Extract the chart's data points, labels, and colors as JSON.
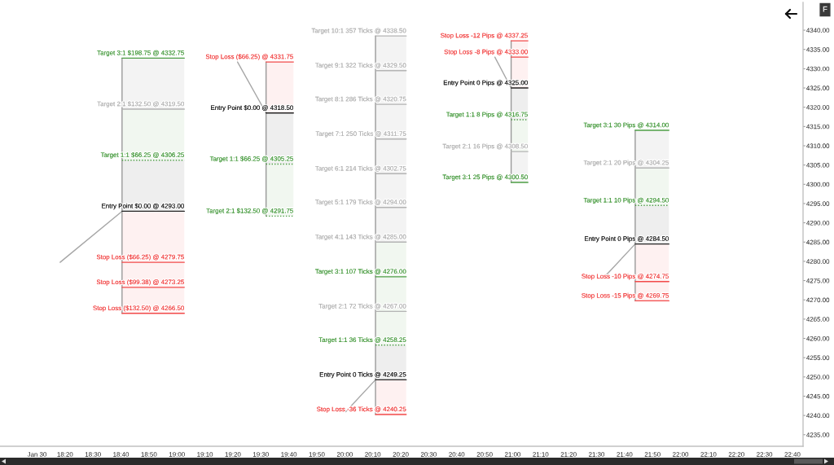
{
  "chart_data": {
    "type": "line",
    "line_style": "solid",
    "xlim": [
      17.946,
      22.73
    ],
    "ylim": [
      4232,
      4347.2
    ],
    "xticks": [
      {
        "value": 18.1667,
        "label": "Jan 30"
      },
      {
        "value": 18.3333,
        "label": "18:20"
      },
      {
        "value": 18.5,
        "label": "18:30"
      },
      {
        "value": 18.6667,
        "label": "18:40"
      },
      {
        "value": 18.8333,
        "label": "18:50"
      },
      {
        "value": 19.0,
        "label": "19:00"
      },
      {
        "value": 19.1667,
        "label": "19:10"
      },
      {
        "value": 19.3333,
        "label": "19:20"
      },
      {
        "value": 19.5,
        "label": "19:30"
      },
      {
        "value": 19.6667,
        "label": "19:40"
      },
      {
        "value": 19.8333,
        "label": "19:50"
      },
      {
        "value": 20.0,
        "label": "20:00"
      },
      {
        "value": 20.1667,
        "label": "20:10"
      },
      {
        "value": 20.3333,
        "label": "20:20"
      },
      {
        "value": 20.5,
        "label": "20:30"
      },
      {
        "value": 20.6667,
        "label": "20:40"
      },
      {
        "value": 20.8333,
        "label": "20:50"
      },
      {
        "value": 21.0,
        "label": "21:00"
      },
      {
        "value": 21.1667,
        "label": "21:10"
      },
      {
        "value": 21.3333,
        "label": "21:20"
      },
      {
        "value": 21.5,
        "label": "21:30"
      },
      {
        "value": 21.6667,
        "label": "21:40"
      },
      {
        "value": 21.8333,
        "label": "21:50"
      },
      {
        "value": 22.0,
        "label": "22:00"
      },
      {
        "value": 22.1667,
        "label": "22:10"
      },
      {
        "value": 22.3333,
        "label": "22:20"
      },
      {
        "value": 22.5,
        "label": "22:30"
      },
      {
        "value": 22.6667,
        "label": "22:40"
      }
    ],
    "yticks": [
      {
        "value": 4235,
        "label": "4235.00"
      },
      {
        "value": 4240,
        "label": "4240.00"
      },
      {
        "value": 4245,
        "label": "4245.00"
      },
      {
        "value": 4250,
        "label": "4250.00"
      },
      {
        "value": 4255,
        "label": "4255.00"
      },
      {
        "value": 4260,
        "label": "4260.00"
      },
      {
        "value": 4265,
        "label": "4265.00"
      },
      {
        "value": 4270,
        "label": "4270.00"
      },
      {
        "value": 4275,
        "label": "4275.00"
      },
      {
        "value": 4280,
        "label": "4280.00"
      },
      {
        "value": 4285,
        "label": "4285.00"
      },
      {
        "value": 4290,
        "label": "4290.00"
      },
      {
        "value": 4295,
        "label": "4295.00"
      },
      {
        "value": 4300,
        "label": "4300.00"
      },
      {
        "value": 4305,
        "label": "4305.00"
      },
      {
        "value": 4310,
        "label": "4310.00"
      },
      {
        "value": 4315,
        "label": "4315.00"
      },
      {
        "value": 4320,
        "label": "4320.00"
      },
      {
        "value": 4325,
        "label": "4325.00"
      },
      {
        "value": 4330,
        "label": "4330.00"
      },
      {
        "value": 4335,
        "label": "4335.00"
      },
      {
        "value": 4340,
        "label": "4340.00"
      }
    ],
    "annotations": [
      "F",
      {
        "text": "Target 3:1 $198.75 @ 4332.75",
        "x": 19.044,
        "y": 4332.75
      },
      {
        "text": "Target 2:1 $132.50 @ 4319.50",
        "x": 19.044,
        "y": 4319.5
      },
      {
        "text": "Target 1:1 $66.25 @ 4306.25",
        "x": 19.044,
        "y": 4306.25
      },
      {
        "text": "Entry Point $0.00 @ 4293.00",
        "x": 19.044,
        "y": 4293.0
      },
      {
        "text": "Stop Loss ($66.25) @ 4279.75",
        "x": 19.044,
        "y": 4279.75
      },
      {
        "text": "Stop Loss ($99.38) @ 4273.25",
        "x": 19.044,
        "y": 4273.25
      },
      {
        "text": "Stop Loss ($132.50) @ 4266.50",
        "x": 19.044,
        "y": 4266.5
      },
      {
        "text": "Stop Loss ($66.25) @ 4331.75",
        "x": 19.694,
        "y": 4331.75
      },
      {
        "text": "Entry Point $0.00 @ 4318.50",
        "x": 19.694,
        "y": 4318.5
      },
      {
        "text": "Target 1:1 $66.25 @ 4305.25",
        "x": 19.694,
        "y": 4305.25
      },
      {
        "text": "Target 2:1 $132.50 @ 4291.75",
        "x": 19.694,
        "y": 4291.75
      },
      {
        "text": "Target 10:1 357 Ticks @ 4338.50",
        "x": 20.366,
        "y": 4338.5
      },
      {
        "text": "Target 9:1 322 Ticks @ 4329.50",
        "x": 20.366,
        "y": 4329.5
      },
      {
        "text": "Target 8:1 286 Ticks @ 4320.75",
        "x": 20.366,
        "y": 4320.75
      },
      {
        "text": "Target 7:1 250 Ticks @ 4311.75",
        "x": 20.366,
        "y": 4311.75
      },
      {
        "text": "Target 6:1 214 Ticks @ 4302.75",
        "x": 20.366,
        "y": 4302.75
      },
      {
        "text": "Target 5:1 179 Ticks @ 4294.00",
        "x": 20.366,
        "y": 4294.0
      },
      {
        "text": "Target 4:1 143 Ticks @ 4285.00",
        "x": 20.366,
        "y": 4285.0
      },
      {
        "text": "Target 3:1 107 Ticks @ 4276.00",
        "x": 20.366,
        "y": 4276.0
      },
      {
        "text": "Target 2:1 72 Ticks @ 4267.00",
        "x": 20.366,
        "y": 4267.0
      },
      {
        "text": "Target 1:1 36 Ticks @ 4258.25",
        "x": 20.366,
        "y": 4258.25
      },
      {
        "text": "Entry Point 0 Ticks @ 4249.25",
        "x": 20.366,
        "y": 4249.25
      },
      {
        "text": "Stop Loss -36 Ticks @ 4240.25",
        "x": 20.366,
        "y": 4240.25
      },
      {
        "text": "Stop Loss -12 Pips @ 4337.25",
        "x": 21.091,
        "y": 4337.25
      },
      {
        "text": "Stop Loss -8 Pips @ 4333.00",
        "x": 21.091,
        "y": 4333.0
      },
      {
        "text": "Entry Point 0 Pips @ 4325.00",
        "x": 21.091,
        "y": 4325.0
      },
      {
        "text": "Target 1:1 8 Pips @ 4316.75",
        "x": 21.091,
        "y": 4316.75
      },
      {
        "text": "Target 2:1 16 Pips @ 4308.50",
        "x": 21.091,
        "y": 4308.5
      },
      {
        "text": "Target 3:1 25 Pips @ 4300.50",
        "x": 21.091,
        "y": 4300.5
      },
      {
        "text": "Target 3:1 30 Pips @ 4314.00",
        "x": 21.931,
        "y": 4314.0
      },
      {
        "text": "Target 2:1 20 Pips @ 4304.25",
        "x": 21.931,
        "y": 4304.25
      },
      {
        "text": "Target 1:1 10 Pips @ 4294.50",
        "x": 21.931,
        "y": 4294.5
      },
      {
        "text": "Entry Point 0 Pips @ 4284.50",
        "x": 21.931,
        "y": 4284.5
      },
      {
        "text": "Stop Loss -10 Pips @ 4274.75",
        "x": 21.931,
        "y": 4274.75
      },
      {
        "text": "Stop Loss -15 Pips @ 4269.75",
        "x": 21.931,
        "y": 4269.75
      }
    ],
    "series": [
      {
        "color": "#a6a6a6",
        "x": [
          18.304,
          18.673
        ],
        "values": [
          4279.75,
          4293.0
        ]
      },
      {
        "color": "#999999",
        "x": [
          18.673,
          18.673
        ],
        "values": [
          4266.5,
          4332.75
        ]
      },
      {
        "color": "#a6a6a6",
        "x": [
          19.361,
          19.531
        ],
        "values": [
          4331.75,
          4318.5
        ]
      },
      {
        "color": "#999999",
        "x": [
          19.531,
          19.531
        ],
        "values": [
          4291.75,
          4331.75
        ]
      },
      {
        "color": "#a6a6a6",
        "x": [
          20.006,
          20.183
        ],
        "values": [
          4241.0,
          4249.25
        ]
      },
      {
        "color": "#999999",
        "x": [
          20.183,
          20.183
        ],
        "values": [
          4240.25,
          4338.5
        ]
      },
      {
        "color": "#a6a6a6",
        "x": [
          20.894,
          20.991
        ],
        "values": [
          4333.0,
          4325.0
        ]
      },
      {
        "color": "#999999",
        "x": [
          20.991,
          20.991
        ],
        "values": [
          4300.5,
          4337.25
        ]
      },
      {
        "color": "#a6a6a6",
        "x": [
          21.548,
          21.73
        ],
        "values": [
          4276.0,
          4284.5
        ]
      },
      {
        "color": "#999999",
        "x": [
          21.73,
          21.73
        ],
        "values": [
          4269.75,
          4314.0
        ]
      },
      {
        "color": "#4d9e45",
        "x": [
          18.673,
          19.044
        ],
        "values": [
          4332.75,
          4332.75
        ]
      },
      {
        "color": "#b4b4b4",
        "x": [
          18.673,
          19.044
        ],
        "values": [
          4319.5,
          4319.5
        ],
        "lower": [
          4319.5,
          4319.5
        ],
        "upper": [
          4332.75,
          4332.75
        ]
      },
      {
        "color": "#4d9e45",
        "line_style": "dotted",
        "x": [
          18.673,
          19.044
        ],
        "values": [
          4306.25,
          4306.25
        ],
        "lower": [
          4306.25,
          4306.25
        ],
        "upper": [
          4319.5,
          4319.5
        ]
      },
      {
        "color": "#262626",
        "x": [
          18.673,
          19.044
        ],
        "values": [
          4293.0,
          4293.0
        ],
        "lower": [
          4293.0,
          4293.0
        ],
        "upper": [
          4306.25,
          4306.25
        ]
      },
      {
        "color": "#f24b4b",
        "x": [
          18.673,
          19.044
        ],
        "values": [
          4279.75,
          4279.75
        ]
      },
      {
        "color": "#f24b4b",
        "x": [
          18.673,
          19.044
        ],
        "values": [
          4273.25,
          4273.25
        ]
      },
      {
        "color": "#f24b4b",
        "x": [
          18.673,
          19.044
        ],
        "values": [
          4266.5,
          4266.5
        ],
        "lower": [
          4266.5,
          4266.5
        ],
        "upper": [
          4293.0,
          4293.0
        ]
      },
      {
        "color": "#f24b4b",
        "x": [
          19.531,
          19.694
        ],
        "values": [
          4331.75,
          4331.75
        ],
        "lower": [
          4318.5,
          4318.5
        ],
        "upper": [
          4331.75,
          4331.75
        ]
      },
      {
        "color": "#262626",
        "x": [
          19.531,
          19.694
        ],
        "values": [
          4318.5,
          4318.5
        ],
        "lower": [
          4305.25,
          4305.25
        ],
        "upper": [
          4318.5,
          4318.5
        ]
      },
      {
        "color": "#4d9e45",
        "line_style": "dotted",
        "x": [
          19.531,
          19.694
        ],
        "values": [
          4305.25,
          4305.25
        ],
        "lower": [
          4291.75,
          4291.75
        ],
        "upper": [
          4305.25,
          4305.25
        ]
      },
      {
        "color": "#4d9e45",
        "line_style": "dotted",
        "x": [
          19.531,
          19.694
        ],
        "values": [
          4291.75,
          4291.75
        ]
      },
      {
        "color": "#b4b4b4",
        "x": [
          20.183,
          20.366
        ],
        "values": [
          4338.5,
          4338.5
        ]
      },
      {
        "color": "#b4b4b4",
        "x": [
          20.183,
          20.366
        ],
        "values": [
          4329.5,
          4329.5
        ]
      },
      {
        "color": "#b4b4b4",
        "x": [
          20.183,
          20.366
        ],
        "values": [
          4320.75,
          4320.75
        ]
      },
      {
        "color": "#b4b4b4",
        "x": [
          20.183,
          20.366
        ],
        "values": [
          4311.75,
          4311.75
        ]
      },
      {
        "color": "#b4b4b4",
        "x": [
          20.183,
          20.366
        ],
        "values": [
          4302.75,
          4302.75
        ]
      },
      {
        "color": "#b4b4b4",
        "x": [
          20.183,
          20.366
        ],
        "values": [
          4294.0,
          4294.0
        ]
      },
      {
        "color": "#b4b4b4",
        "x": [
          20.183,
          20.366
        ],
        "values": [
          4285.0,
          4285.0
        ],
        "lower": [
          4285.0,
          4285.0
        ],
        "upper": [
          4338.5,
          4338.5
        ]
      },
      {
        "color": "#4d9e45",
        "x": [
          20.183,
          20.366
        ],
        "values": [
          4276.0,
          4276.0
        ]
      },
      {
        "color": "#b4b4b4",
        "x": [
          20.183,
          20.366
        ],
        "values": [
          4267.0,
          4267.0
        ]
      },
      {
        "color": "#4d9e45",
        "line_style": "dotted",
        "x": [
          20.183,
          20.366
        ],
        "values": [
          4258.25,
          4258.25
        ],
        "lower": [
          4258.25,
          4258.25
        ],
        "upper": [
          4285.0,
          4285.0
        ]
      },
      {
        "color": "#262626",
        "x": [
          20.183,
          20.366
        ],
        "values": [
          4249.25,
          4249.25
        ],
        "lower": [
          4249.25,
          4249.25
        ],
        "upper": [
          4258.25,
          4258.25
        ]
      },
      {
        "color": "#f24b4b",
        "x": [
          20.183,
          20.366
        ],
        "values": [
          4240.25,
          4240.25
        ],
        "lower": [
          4240.25,
          4240.25
        ],
        "upper": [
          4249.25,
          4249.25
        ]
      },
      {
        "color": "#f24b4b",
        "x": [
          20.991,
          21.091
        ],
        "values": [
          4337.25,
          4337.25
        ],
        "lower": [
          4325.0,
          4325.0
        ],
        "upper": [
          4337.25,
          4337.25
        ]
      },
      {
        "color": "#f24b4b",
        "x": [
          20.991,
          21.091
        ],
        "values": [
          4333.0,
          4333.0
        ]
      },
      {
        "color": "#262626",
        "x": [
          20.991,
          21.091
        ],
        "values": [
          4325.0,
          4325.0
        ],
        "lower": [
          4316.75,
          4316.75
        ],
        "upper": [
          4325.0,
          4325.0
        ]
      },
      {
        "color": "#4d9e45",
        "line_style": "dotted",
        "x": [
          20.991,
          21.091
        ],
        "values": [
          4316.75,
          4316.75
        ],
        "lower": [
          4308.5,
          4308.5
        ],
        "upper": [
          4316.75,
          4316.75
        ]
      },
      {
        "color": "#b4b4b4",
        "x": [
          20.991,
          21.091
        ],
        "values": [
          4308.5,
          4308.5
        ],
        "lower": [
          4300.5,
          4300.5
        ],
        "upper": [
          4308.5,
          4308.5
        ]
      },
      {
        "color": "#4d9e45",
        "x": [
          20.991,
          21.091
        ],
        "values": [
          4300.5,
          4300.5
        ]
      },
      {
        "color": "#4d9e45",
        "x": [
          21.73,
          21.931
        ],
        "values": [
          4314.0,
          4314.0
        ]
      },
      {
        "color": "#b4b4b4",
        "x": [
          21.73,
          21.931
        ],
        "values": [
          4304.25,
          4304.25
        ],
        "lower": [
          4304.25,
          4304.25
        ],
        "upper": [
          4314.0,
          4314.0
        ]
      },
      {
        "color": "#4d9e45",
        "line_style": "dotted",
        "x": [
          21.73,
          21.931
        ],
        "values": [
          4294.5,
          4294.5
        ],
        "lower": [
          4294.5,
          4294.5
        ],
        "upper": [
          4304.25,
          4304.25
        ]
      },
      {
        "color": "#262626",
        "x": [
          21.73,
          21.931
        ],
        "values": [
          4284.5,
          4284.5
        ],
        "lower": [
          4284.5,
          4284.5
        ],
        "upper": [
          4294.5,
          4294.5
        ]
      },
      {
        "color": "#f24b4b",
        "x": [
          21.73,
          21.931
        ],
        "values": [
          4274.75,
          4274.75
        ]
      },
      {
        "color": "#f24b4b",
        "x": [
          21.73,
          21.931
        ],
        "values": [
          4269.75,
          4269.75
        ],
        "lower": [
          4269.75,
          4269.75
        ],
        "upper": [
          4284.5,
          4284.5
        ]
      }
    ]
  }
}
